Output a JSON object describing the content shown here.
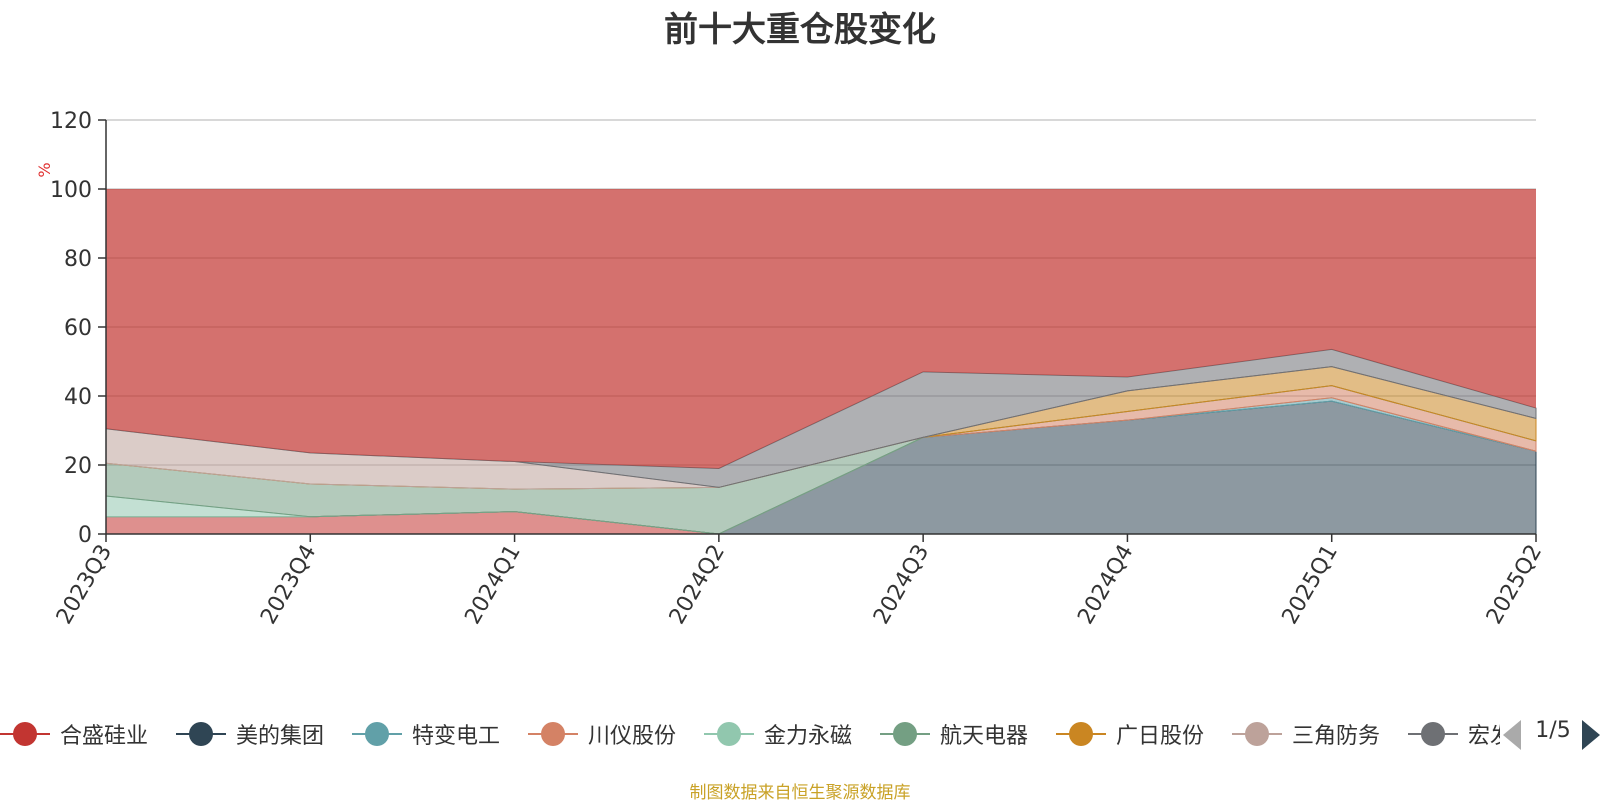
{
  "title": "前十大重仓股变化",
  "source_note": "制图数据来自恒生聚源数据库",
  "legend_pager": {
    "text": "1/5"
  },
  "chart_data": {
    "type": "area",
    "stacked": true,
    "title": "前十大重仓股变化",
    "ylabel": "%",
    "ylim": [
      0,
      120
    ],
    "yticks": [
      0,
      20,
      40,
      60,
      80,
      100,
      120
    ],
    "grid": true,
    "legend_position": "bottom",
    "categories": [
      "2023Q3",
      "2023Q4",
      "2024Q1",
      "2024Q2",
      "2024Q3",
      "2024Q4",
      "2025Q1",
      "2025Q2"
    ],
    "series": [
      {
        "name": "合盛硅业",
        "color": "#c23531",
        "values": [
          5,
          5,
          6.5,
          0,
          0,
          0,
          0,
          0
        ]
      },
      {
        "name": "美的集团",
        "color": "#2f4554",
        "values": [
          0,
          0,
          0,
          0,
          28,
          33,
          38.5,
          24
        ]
      },
      {
        "name": "特变电工",
        "color": "#61a0a8",
        "values": [
          0,
          0,
          0,
          0,
          0,
          0,
          1,
          0
        ]
      },
      {
        "name": "川仪股份",
        "color": "#d48265",
        "values": [
          0,
          0,
          0,
          0,
          0,
          2.5,
          3.5,
          3
        ]
      },
      {
        "name": "金力永磁",
        "color": "#91c7ae",
        "values": [
          6,
          0,
          0,
          0,
          0,
          0,
          0,
          0
        ]
      },
      {
        "name": "航天电器",
        "color": "#749f83",
        "values": [
          9.5,
          9.5,
          6.5,
          13.5,
          0,
          0,
          0,
          0
        ]
      },
      {
        "name": "广日股份",
        "color": "#ca8622",
        "values": [
          0,
          0,
          0,
          0,
          0,
          6,
          5.5,
          6.5
        ]
      },
      {
        "name": "三角防务",
        "color": "#bda29a",
        "values": [
          10,
          9,
          8,
          0,
          0,
          0,
          0,
          0
        ]
      },
      {
        "name": "宏发股份",
        "color": "#6e7074",
        "values": [
          0,
          0,
          0,
          5.5,
          19,
          4,
          5,
          3
        ]
      }
    ]
  }
}
